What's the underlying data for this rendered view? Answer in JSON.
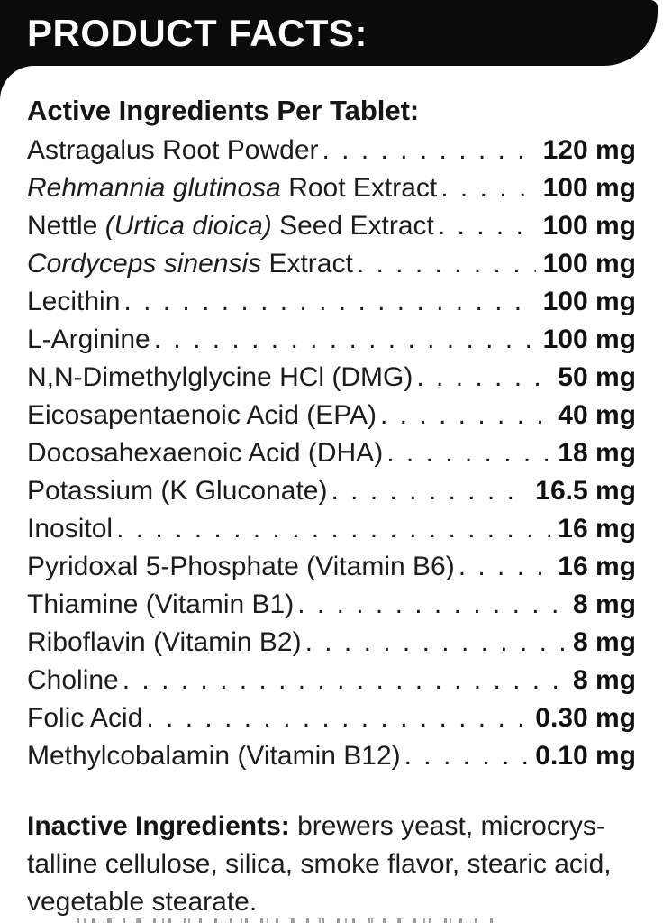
{
  "header": {
    "title": "PRODUCT FACTS:"
  },
  "panel": {
    "section_title": "Active Ingredients Per Tablet:",
    "rows": [
      {
        "segments": [
          {
            "t": "Astragalus Root Powder",
            "i": false
          }
        ],
        "amount": "120 mg"
      },
      {
        "segments": [
          {
            "t": "Rehmannia glutinosa",
            "i": true
          },
          {
            "t": " Root Extract",
            "i": false
          }
        ],
        "amount": "100 mg"
      },
      {
        "segments": [
          {
            "t": "Nettle ",
            "i": false
          },
          {
            "t": "(Urtica dioica)",
            "i": true
          },
          {
            "t": " Seed Extract",
            "i": false
          }
        ],
        "amount": "100 mg"
      },
      {
        "segments": [
          {
            "t": "Cordyceps sinensis",
            "i": true
          },
          {
            "t": " Extract",
            "i": false
          }
        ],
        "amount": "100 mg"
      },
      {
        "segments": [
          {
            "t": "Lecithin",
            "i": false
          }
        ],
        "amount": "100 mg"
      },
      {
        "segments": [
          {
            "t": "L-Arginine",
            "i": false
          }
        ],
        "amount": "100 mg"
      },
      {
        "segments": [
          {
            "t": "N,N-Dimethylglycine HCl (DMG)",
            "i": false
          }
        ],
        "amount": "50 mg"
      },
      {
        "segments": [
          {
            "t": "Eicosapentaenoic Acid (EPA)",
            "i": false
          }
        ],
        "amount": "40 mg"
      },
      {
        "segments": [
          {
            "t": "Docosahexaenoic Acid (DHA)",
            "i": false
          }
        ],
        "amount": "18 mg"
      },
      {
        "segments": [
          {
            "t": "Potassium (K Gluconate)",
            "i": false
          }
        ],
        "amount": "16.5 mg"
      },
      {
        "segments": [
          {
            "t": "Inositol",
            "i": false
          }
        ],
        "amount": "16 mg"
      },
      {
        "segments": [
          {
            "t": "Pyridoxal 5-Phosphate (Vitamin B6)",
            "i": false
          }
        ],
        "amount": "16 mg"
      },
      {
        "segments": [
          {
            "t": "Thiamine (Vitamin B1)",
            "i": false
          }
        ],
        "amount": "8 mg"
      },
      {
        "segments": [
          {
            "t": "Riboflavin (Vitamin B2)",
            "i": false
          }
        ],
        "amount": "8 mg"
      },
      {
        "segments": [
          {
            "t": "Choline",
            "i": false
          }
        ],
        "amount": "8 mg"
      },
      {
        "segments": [
          {
            "t": "Folic Acid",
            "i": false
          }
        ],
        "amount": "0.30 mg"
      },
      {
        "segments": [
          {
            "t": "Methylcobalamin (Vitamin B12)",
            "i": false
          }
        ],
        "amount": "0.10 mg"
      }
    ],
    "inactive": {
      "label": "Inactive Ingredients:",
      "text": " brewers yeast, microcrys­talline cellulose, silica, smoke flavor, stearic acid, vegetable stearate."
    }
  },
  "colors": {
    "header_bg": "#0b0b0b",
    "header_text": "#ffffff",
    "body_text": "#1c1c1c",
    "panel_bg": "#ffffff"
  }
}
